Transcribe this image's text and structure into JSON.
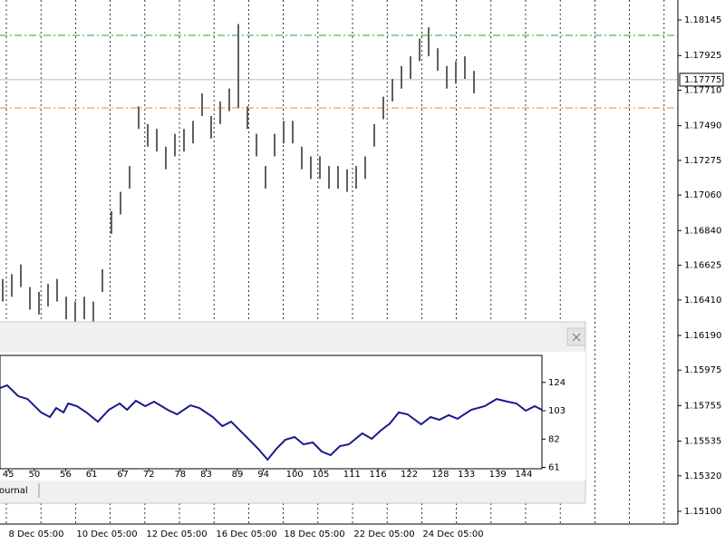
{
  "chart_data": [
    {
      "type": "ohlc",
      "high": [
        1.1654,
        1.1657,
        1.1663,
        1.1649,
        1.1646,
        1.1651,
        1.1654,
        1.1643,
        1.164,
        1.1643,
        1.164,
        1.166,
        1.1696,
        1.1708,
        1.1724,
        1.1761,
        1.175,
        1.1747,
        1.1736,
        1.1744,
        1.1747,
        1.1752,
        1.1769,
        1.1755,
        1.1764,
        1.1772,
        1.1812,
        1.1761,
        1.1744,
        1.1724,
        1.1744,
        1.1752,
        1.1752,
        1.1736,
        1.173,
        1.173,
        1.1724,
        1.1724,
        1.1722,
        1.1724,
        1.173,
        1.175,
        1.1767,
        1.1778,
        1.1786,
        1.1792,
        1.1803,
        1.181,
        1.1797,
        1.1786,
        1.1789,
        1.1792,
        1.1783
      ],
      "low": [
        1.164,
        1.1643,
        1.1649,
        1.1635,
        1.1632,
        1.1637,
        1.164,
        1.1629,
        1.1626,
        1.1629,
        1.1626,
        1.1646,
        1.1682,
        1.1694,
        1.171,
        1.1747,
        1.1736,
        1.1733,
        1.1722,
        1.173,
        1.1733,
        1.1738,
        1.1755,
        1.1741,
        1.175,
        1.1758,
        1.176,
        1.1747,
        1.173,
        1.171,
        1.173,
        1.1738,
        1.1738,
        1.1722,
        1.1716,
        1.1716,
        1.171,
        1.171,
        1.1708,
        1.171,
        1.1716,
        1.1736,
        1.1753,
        1.1764,
        1.1772,
        1.1778,
        1.1789,
        1.1792,
        1.1783,
        1.1772,
        1.1775,
        1.1778,
        1.1769
      ],
      "color": "#606060",
      "ylim": [
        1.15021,
        1.18269
      ],
      "yticks": [
        1.18145,
        1.17925,
        {
          "value": 1.1771,
          "label": "1.17710"
        },
        {
          "value": 1.1749,
          "label": "1.17490"
        },
        1.17275,
        {
          "value": 1.1706,
          "label": "1.17060"
        },
        {
          "value": 1.1684,
          "label": "1.16840"
        },
        1.16625,
        {
          "value": 1.1641,
          "label": "1.16410"
        },
        {
          "value": 1.1619,
          "label": "1.16190"
        },
        1.15975,
        1.15755,
        1.15535,
        {
          "value": 1.1532,
          "label": "1.15320"
        },
        {
          "value": 1.151,
          "label": "1.15100"
        }
      ],
      "current_price": 1.17775,
      "levels": [
        {
          "value": 1.1805,
          "color": "#3a9a3a"
        },
        {
          "value": 1.176,
          "color": "#f0843c"
        }
      ],
      "date_labels": [
        "8 Dec 05:00",
        "10 Dec 05:00",
        "12 Dec 05:00",
        "16 Dec 05:00",
        "18 Dec 05:00",
        "22 Dec 05:00",
        "24 Dec 05:00"
      ]
    },
    {
      "type": "line",
      "x": [
        43.4,
        44.8,
        46.9,
        48.7,
        51.3,
        53.0,
        54.2,
        55.6,
        56.5,
        58.2,
        60.0,
        62.2,
        64.3,
        66.4,
        67.8,
        69.5,
        71.3,
        73.0,
        75.6,
        77.4,
        80.0,
        81.7,
        84.3,
        86.1,
        87.8,
        90.4,
        93.0,
        94.8,
        96.5,
        98.2,
        100.0,
        101.7,
        103.5,
        105.2,
        106.9,
        108.7,
        110.4,
        113.0,
        114.8,
        116.5,
        118.3,
        120.0,
        121.7,
        124.3,
        126.1,
        127.8,
        129.6,
        131.3,
        133.9,
        136.5,
        138.8,
        140.9,
        142.6,
        144.4,
        146.1,
        147.5
      ],
      "values": [
        119.8,
        121.8,
        113.8,
        111.7,
        101.7,
        98.3,
        105.0,
        101.7,
        108.4,
        106.4,
        101.7,
        94.9,
        103.7,
        108.4,
        103.7,
        110.4,
        106.4,
        109.7,
        103.7,
        100.3,
        107.0,
        105.0,
        98.3,
        91.6,
        94.9,
        84.9,
        74.8,
        66.7,
        74.8,
        81.5,
        83.5,
        78.1,
        79.5,
        72.8,
        70.1,
        76.8,
        78.1,
        86.2,
        82.2,
        88.2,
        93.6,
        101.7,
        100.3,
        92.9,
        98.3,
        96.3,
        99.7,
        97.0,
        103.7,
        106.4,
        111.7,
        109.7,
        108.4,
        103.0,
        106.4,
        103.7
      ],
      "color": "#1a1a8c",
      "xlim": [
        43.4,
        147.5
      ],
      "xticks": [
        45,
        50,
        56,
        61,
        67,
        72,
        78,
        83,
        89,
        94,
        100,
        105,
        111,
        116,
        122,
        128,
        133,
        139,
        144
      ],
      "ylim": [
        60,
        144
      ],
      "yticks": [
        124,
        103,
        82,
        61
      ]
    }
  ],
  "window": {
    "tab": "ournal"
  }
}
